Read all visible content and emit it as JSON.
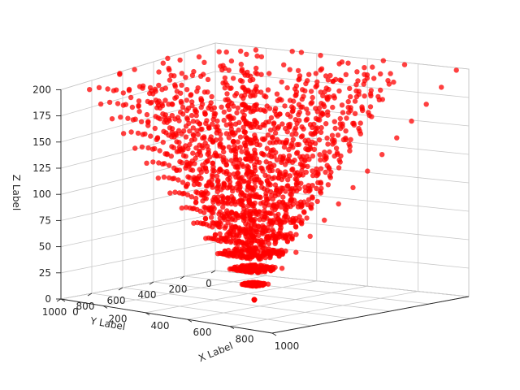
{
  "chart_data": {
    "type": "scatter",
    "projection": "3d",
    "xlabel": "X Label",
    "ylabel": "Y Label",
    "zlabel": "Z Label",
    "xlim": [
      0,
      1000
    ],
    "ylim": [
      0,
      1000
    ],
    "zlim": [
      0,
      200
    ],
    "x_ticks": [
      "0",
      "200",
      "400",
      "600",
      "800",
      "1000"
    ],
    "y_ticks": [
      "0",
      "200",
      "400",
      "600",
      "800",
      "1000"
    ],
    "z_ticks": [
      "0",
      "25",
      "50",
      "75",
      "100",
      "125",
      "150",
      "175",
      "200"
    ],
    "grid": true,
    "colors": {
      "points": "#ff0000",
      "pane": "#f2f2f2",
      "grid": "#c8c8c8"
    },
    "apex": {
      "x": 500,
      "y": 500,
      "z": 0
    },
    "top_z": 200,
    "description_of_data": "Rays of points from an apex near (500, 500, 0) to top points at z = 200 scattered over x and y between 0 and 1000, forming an inverted cone."
  }
}
